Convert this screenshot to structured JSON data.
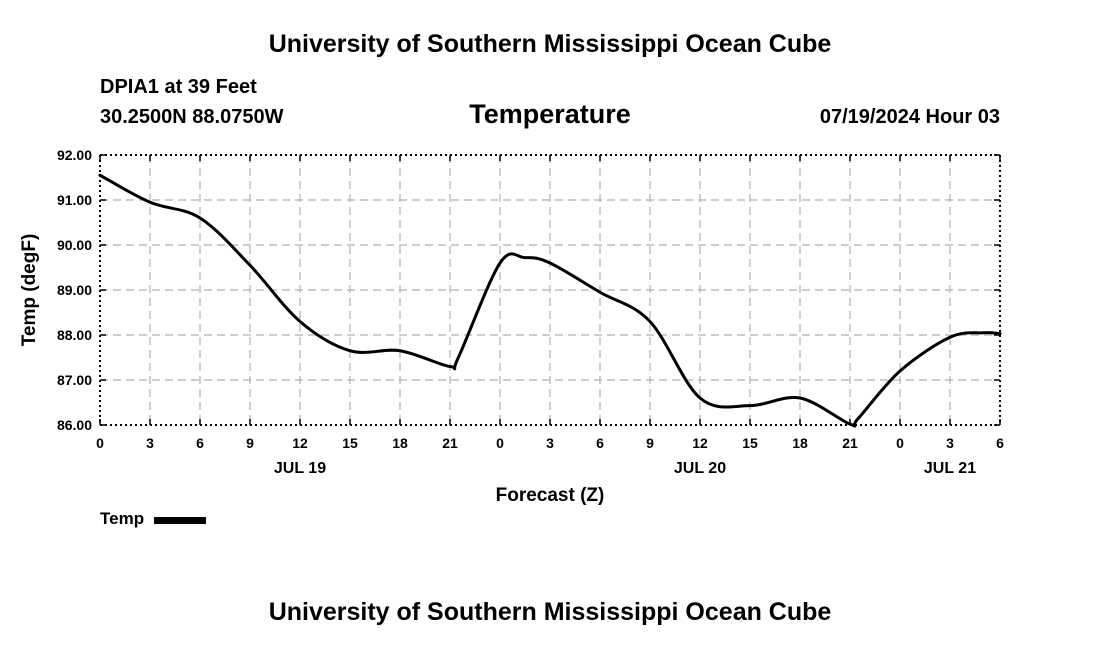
{
  "header": {
    "title": "University of Southern Mississippi Ocean Cube",
    "station": "DPIA1 at 39 Feet",
    "coords": "30.2500N  88.0750W",
    "datetime": "07/19/2024 Hour 03"
  },
  "footer": {
    "title": "University of Southern Mississippi Ocean Cube"
  },
  "legend": {
    "label": "Temp"
  },
  "colors": {
    "line": "#000000",
    "grid": "#b0b0b0",
    "background": "#ffffff"
  },
  "chart_data": {
    "type": "line",
    "title": "Temperature",
    "xlabel": "Forecast (Z)",
    "ylabel": "Temp (degF)",
    "xlim": [
      0,
      54
    ],
    "ylim": [
      86.0,
      92.0
    ],
    "grid": true,
    "legend_position": "bottom-left",
    "x_ticks": [
      0,
      3,
      6,
      9,
      12,
      15,
      18,
      21,
      24,
      27,
      30,
      33,
      36,
      39,
      42,
      45,
      48,
      51,
      54
    ],
    "x_tick_labels": [
      "0",
      "3",
      "6",
      "9",
      "12",
      "15",
      "18",
      "21",
      "0",
      "3",
      "6",
      "9",
      "12",
      "15",
      "18",
      "21",
      "0",
      "3",
      "6"
    ],
    "y_ticks": [
      86,
      87,
      88,
      89,
      90,
      91,
      92
    ],
    "y_tick_labels": [
      "86.00",
      "87.00",
      "88.00",
      "89.00",
      "90.00",
      "91.00",
      "92.00"
    ],
    "date_labels": [
      {
        "x": 12,
        "label": "JUL 19"
      },
      {
        "x": 36,
        "label": "JUL 20"
      },
      {
        "x": 51,
        "label": "JUL 21"
      }
    ],
    "series": [
      {
        "name": "Temp",
        "x": [
          0,
          3,
          6,
          9,
          12,
          15,
          18,
          21,
          21.5,
          24,
          25.5,
          27,
          30,
          33,
          36,
          39,
          42,
          45,
          45.5,
          48,
          51,
          53,
          54
        ],
        "values": [
          91.55,
          90.95,
          90.6,
          89.55,
          88.3,
          87.65,
          87.65,
          87.3,
          87.5,
          89.6,
          89.72,
          89.6,
          88.95,
          88.3,
          86.6,
          86.43,
          86.6,
          86.02,
          86.15,
          87.2,
          87.95,
          88.05,
          88.03
        ]
      }
    ]
  }
}
